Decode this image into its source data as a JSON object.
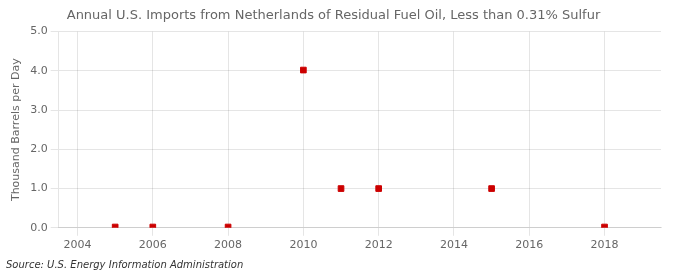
{
  "chart_data": {
    "type": "scatter",
    "title": "Annual U.S. Imports from Netherlands of Residual Fuel Oil, Less than 0.31% Sulfur",
    "ylabel": "Thousand Barrels per Day",
    "annotations": [
      "Source: U.S. Energy Information Administration"
    ],
    "x": [
      2005,
      2006,
      2008,
      2010,
      2011,
      2012,
      2015,
      2018
    ],
    "values": [
      0.02,
      0.02,
      0.02,
      4.02,
      1.0,
      1.0,
      1.0,
      0.02
    ],
    "color": "#cc0000",
    "marker": "square",
    "xlim": [
      2003.5,
      2019.5
    ],
    "xticks": [
      2004,
      2006,
      2008,
      2010,
      2012,
      2014,
      2016,
      2018
    ],
    "ylim": [
      0.0,
      5.0
    ],
    "yticks": [
      {
        "value": 0.0,
        "label": "0.0"
      },
      {
        "value": 1.0,
        "label": "1.0"
      },
      {
        "value": 2.0,
        "label": "2.0"
      },
      {
        "value": 3.0,
        "label": "3.0"
      },
      {
        "value": 4.0,
        "label": "4.0"
      },
      {
        "value": 5.0,
        "label": "5.0"
      }
    ],
    "grid": true
  }
}
